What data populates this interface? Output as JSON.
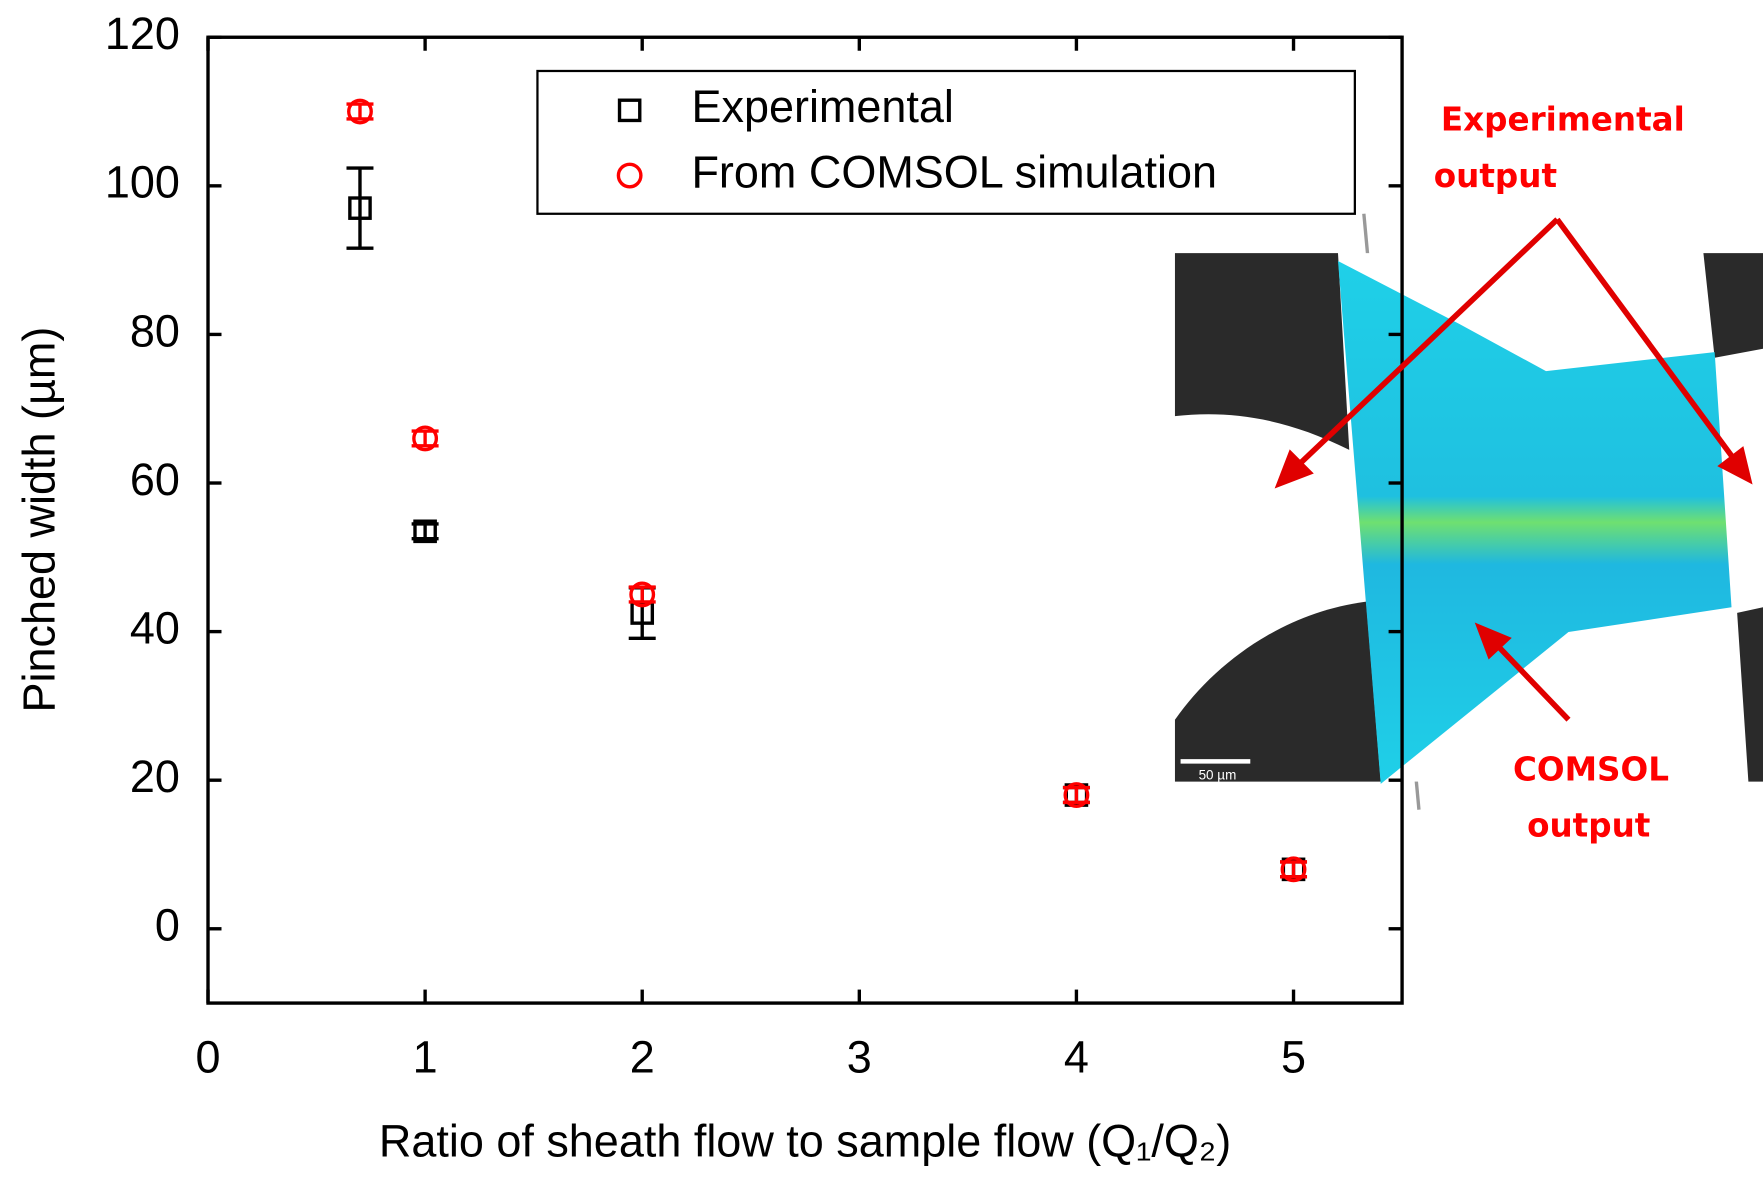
{
  "chart_data": {
    "type": "scatter",
    "xlabel": "Ratio of sheath flow to sample flow (Q₁/Q₂)",
    "ylabel": "Pinched width (µm)",
    "xlim": [
      0,
      5.5
    ],
    "ylim": [
      -10,
      120
    ],
    "xticks": [
      0,
      1,
      2,
      3,
      4,
      5
    ],
    "yticks": [
      0,
      20,
      40,
      60,
      80,
      100,
      120
    ],
    "legend": "top-right",
    "series": [
      {
        "name": "Experimental",
        "color": "#000000",
        "marker": "square",
        "x": [
          0.7,
          1,
          2,
          4,
          5
        ],
        "values": [
          97,
          53.5,
          42.5,
          18,
          8
        ],
        "errors": [
          5.4,
          1,
          3.4,
          1,
          1
        ]
      },
      {
        "name": "From COMSOL simulation",
        "color": "#ff0000",
        "marker": "circle",
        "x": [
          0.7,
          1,
          2,
          4,
          5
        ],
        "values": [
          110,
          66,
          45,
          18,
          8
        ],
        "errors": [
          1,
          1,
          1,
          1,
          1
        ]
      }
    ],
    "annotations": [
      {
        "lines": [
          "Experimental",
          "output"
        ]
      },
      {
        "lines": [
          "COMSOL",
          "output"
        ]
      },
      {
        "lines": [
          "50 µm"
        ]
      }
    ]
  }
}
